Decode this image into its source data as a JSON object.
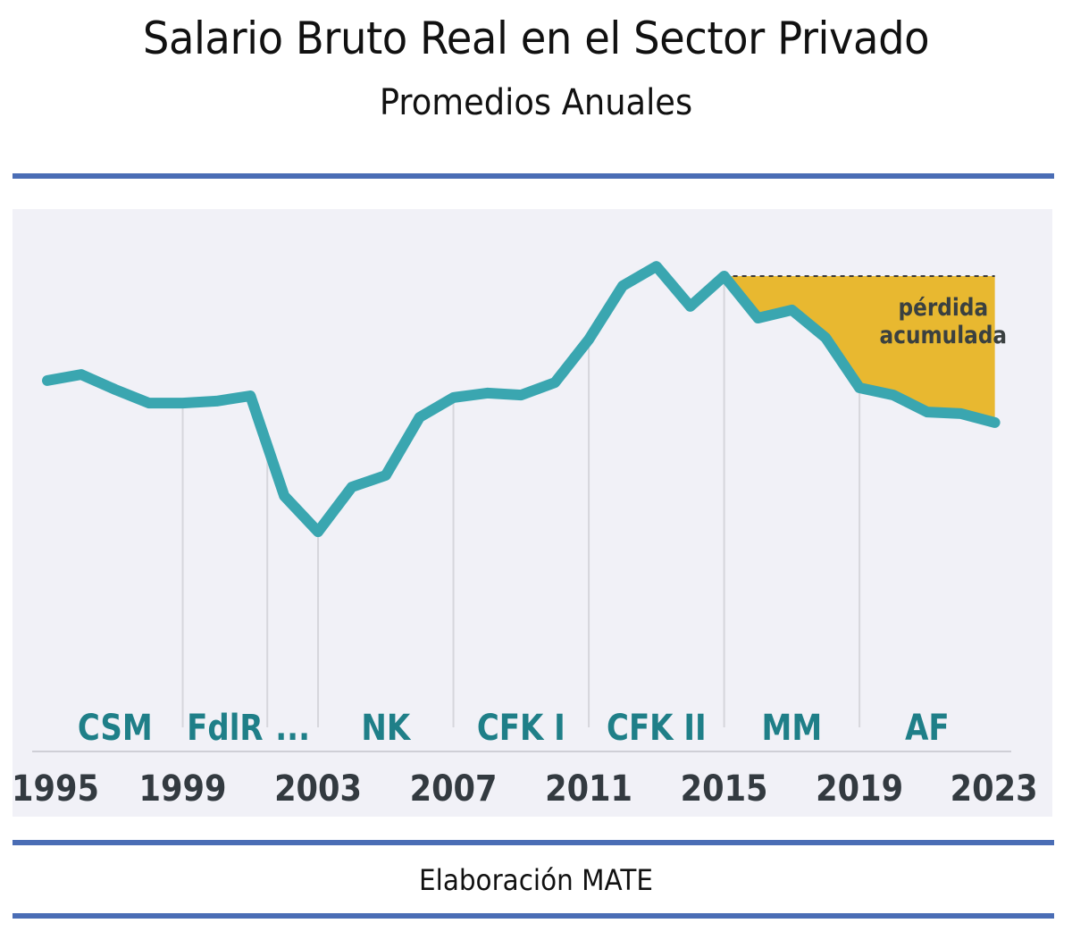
{
  "header": {
    "title": "Salario Bruto Real en el Sector Privado",
    "subtitle": "Promedios Anuales"
  },
  "footer": {
    "source": "Elaboración MATE"
  },
  "colors": {
    "line": "#3aa6b0",
    "loss_fill": "#e8b830",
    "period_label": "#1f7f88",
    "year_label": "#333a40",
    "rule": "#4a6db5",
    "panel": "#f1f1f7",
    "grid": "#d6d6dc"
  },
  "chart_data": {
    "type": "line",
    "title": "Salario Bruto Real en el Sector Privado",
    "subtitle": "Promedios Anuales",
    "xlabel": "",
    "ylabel": "",
    "y_units": "index (2015 = 100, estimated; no y-axis shown)",
    "xlim": [
      1995,
      2023
    ],
    "ylim": [
      0,
      110
    ],
    "grid": false,
    "x": [
      1995,
      1996,
      1997,
      1998,
      1999,
      2000,
      2001,
      2002,
      2003,
      2004,
      2005,
      2006,
      2007,
      2008,
      2009,
      2010,
      2011,
      2012,
      2013,
      2014,
      2015,
      2016,
      2017,
      2018,
      2019,
      2020,
      2021,
      2022,
      2023
    ],
    "series": [
      {
        "name": "Salario Bruto Real",
        "values": [
          62.4,
          64.6,
          59.2,
          54.3,
          54.3,
          55.0,
          56.9,
          20.9,
          8.0,
          24.1,
          28.3,
          49.2,
          56.3,
          57.9,
          57.2,
          61.7,
          77.2,
          96.5,
          103.5,
          89.1,
          100.0,
          84.9,
          87.8,
          77.8,
          59.8,
          57.2,
          51.1,
          50.5,
          47.3
        ]
      }
    ],
    "x_ticks": [
      "1995",
      "1999",
      "2003",
      "2007",
      "2011",
      "2015",
      "2019",
      "2023"
    ],
    "x_tick_values": [
      1995,
      1999,
      2003,
      2007,
      2011,
      2015,
      2019,
      2023
    ],
    "periods": [
      {
        "label": "CSM",
        "start": 1995,
        "end": 1999
      },
      {
        "label": "FdlR",
        "start": 1999,
        "end": 2001.5
      },
      {
        "label": "...",
        "start": 2001.5,
        "end": 2003
      },
      {
        "label": "NK",
        "start": 2003,
        "end": 2007
      },
      {
        "label": "CFK I",
        "start": 2007,
        "end": 2011
      },
      {
        "label": "CFK II",
        "start": 2011,
        "end": 2015
      },
      {
        "label": "MM",
        "start": 2015,
        "end": 2019
      },
      {
        "label": "AF",
        "start": 2019,
        "end": 2023
      }
    ],
    "period_dividers": [
      1999,
      2001.5,
      2003,
      2007,
      2011,
      2015,
      2019
    ],
    "annotation": {
      "text_line1": "pérdida",
      "text_line2": "acumulada",
      "from_year": 2015,
      "to_year": 2023,
      "reference_value": 100.0
    }
  }
}
